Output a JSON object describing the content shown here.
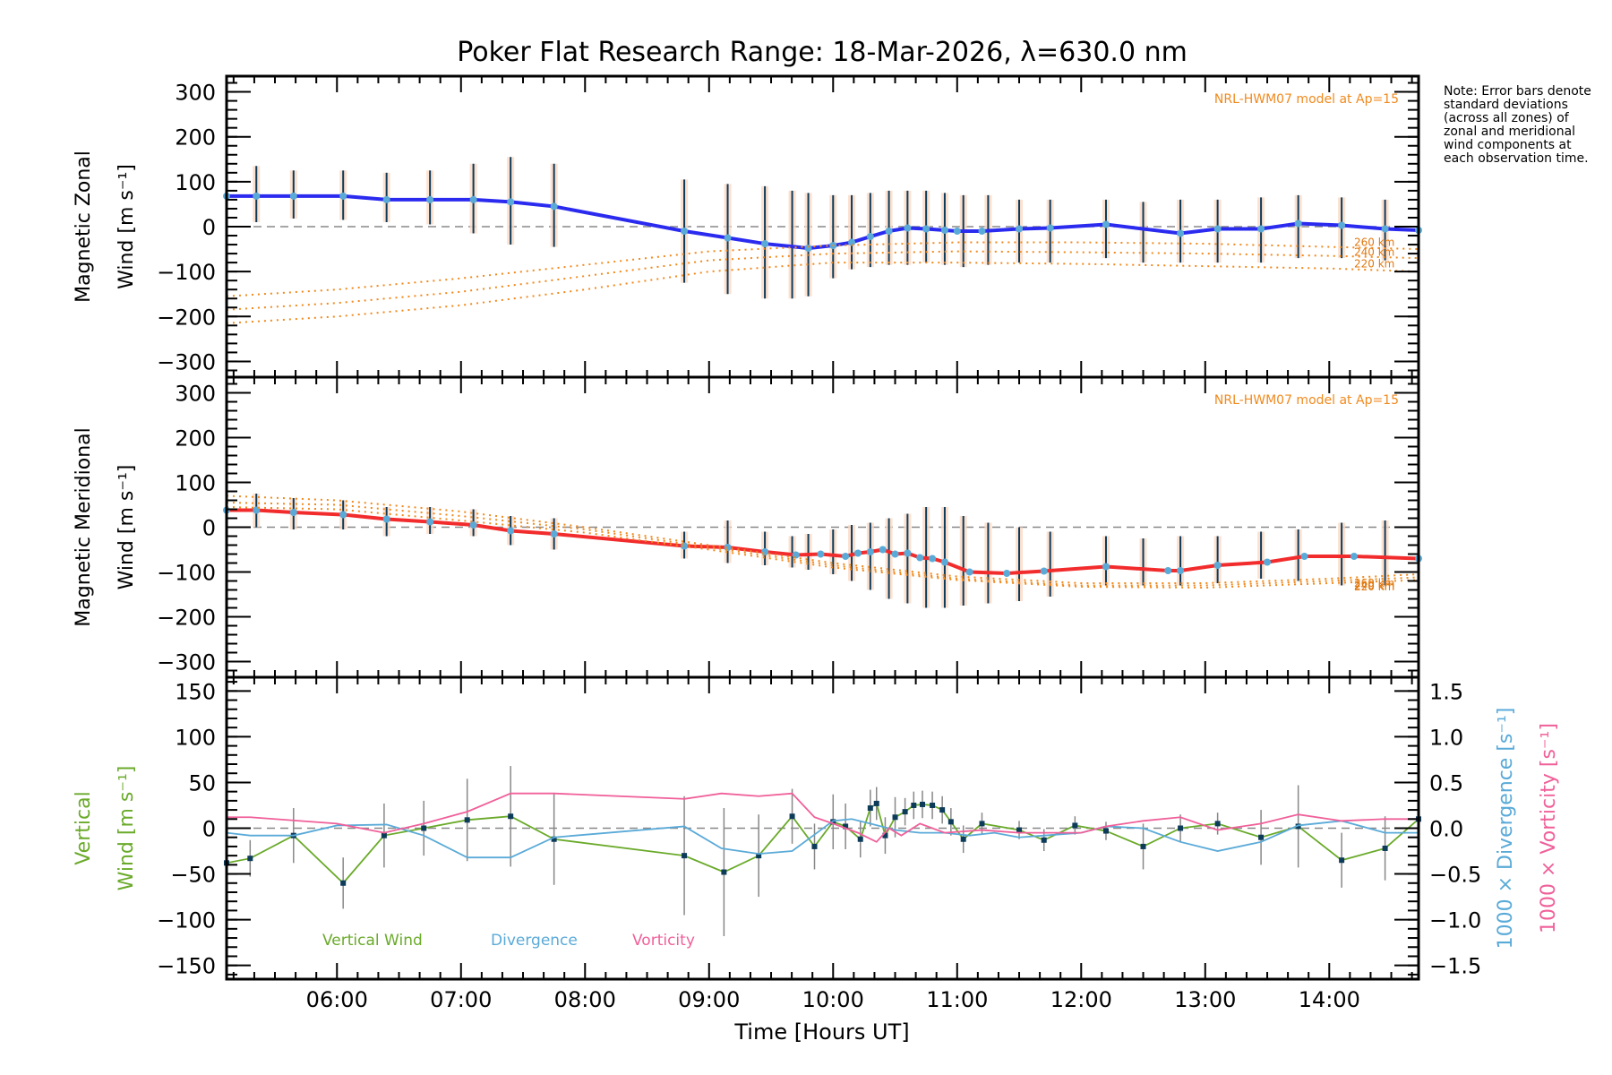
{
  "chart_data": {
    "type": "line",
    "title": "Poker Flat Research Range: 18-Mar-2026, λ=630.0 nm",
    "xlabel": "Time [Hours UT]",
    "x_range_hours": [
      5.11,
      14.72
    ],
    "x_ticks": [
      {
        "value": 6,
        "label": "06:00"
      },
      {
        "value": 7,
        "label": "07:00"
      },
      {
        "value": 8,
        "label": "08:00"
      },
      {
        "value": 9,
        "label": "09:00"
      },
      {
        "value": 10,
        "label": "10:00"
      },
      {
        "value": 11,
        "label": "11:00"
      },
      {
        "value": 12,
        "label": "12:00"
      },
      {
        "value": 13,
        "label": "13:00"
      },
      {
        "value": 14,
        "label": "14:00"
      }
    ],
    "note": "Note: Error bars denote standard deviations (across all zones) of zonal and meridional wind components at each observation time.",
    "panels": [
      {
        "name": "zonal",
        "ylabel_line1": "Magnetic Zonal",
        "ylabel_line2": "Wind [m s⁻¹]",
        "ylim": [
          -335,
          335
        ],
        "yticks": [
          300,
          200,
          100,
          0,
          -100,
          -200,
          -300
        ],
        "model_label": "NRL-HWM07 model at Ap=15",
        "series": [
          {
            "name": "Zonal wind",
            "color": "#2b2bf0",
            "x": [
              5.11,
              5.35,
              5.65,
              6.05,
              6.4,
              6.75,
              7.1,
              7.4,
              7.75,
              8.8,
              9.15,
              9.45,
              9.8,
              10.0,
              10.15,
              10.3,
              10.45,
              10.6,
              10.75,
              10.9,
              11.0,
              11.2,
              11.5,
              11.75,
              12.2,
              12.8,
              13.1,
              13.45,
              13.75,
              14.1,
              14.45,
              14.72
            ],
            "y": [
              68,
              68,
              68,
              68,
              60,
              60,
              60,
              55,
              45,
              -10,
              -25,
              -38,
              -48,
              -42,
              -35,
              -22,
              -10,
              -3,
              -5,
              -8,
              -10,
              -10,
              -5,
              -3,
              5,
              -15,
              -5,
              -5,
              7,
              3,
              -5,
              -8
            ]
          },
          {
            "name": "HWM07 260 km",
            "color": "#f08a1e",
            "label": "260 km",
            "x": [
              5.11,
              6.0,
              7.0,
              8.0,
              9.0,
              10.0,
              11.0,
              12.0,
              13.0,
              14.0,
              14.72
            ],
            "y": [
              -155,
              -140,
              -115,
              -85,
              -55,
              -42,
              -35,
              -35,
              -38,
              -45,
              -50
            ]
          },
          {
            "name": "HWM07 240 km",
            "color": "#f08a1e",
            "label": "240 km",
            "x": [
              5.11,
              6.0,
              7.0,
              8.0,
              9.0,
              10.0,
              11.0,
              12.0,
              13.0,
              14.0,
              14.72
            ],
            "y": [
              -185,
              -170,
              -145,
              -110,
              -75,
              -60,
              -55,
              -57,
              -60,
              -65,
              -70
            ]
          },
          {
            "name": "HWM07 220 km",
            "color": "#f08a1e",
            "label": "220 km",
            "x": [
              5.11,
              6.0,
              7.0,
              8.0,
              9.0,
              10.0,
              11.0,
              12.0,
              13.0,
              14.0,
              14.72
            ],
            "y": [
              -215,
              -200,
              -175,
              -140,
              -100,
              -80,
              -80,
              -83,
              -88,
              -93,
              -100
            ]
          }
        ],
        "error_bars": {
          "x": [
            5.35,
            5.65,
            6.05,
            6.4,
            6.75,
            7.1,
            7.4,
            7.75,
            8.8,
            9.15,
            9.45,
            9.67,
            9.8,
            10.0,
            10.15,
            10.3,
            10.45,
            10.6,
            10.75,
            10.9,
            11.05,
            11.25,
            11.5,
            11.75,
            12.2,
            12.5,
            12.8,
            13.1,
            13.45,
            13.75,
            14.1,
            14.45
          ],
          "lo": [
            10,
            18,
            15,
            10,
            5,
            -15,
            -40,
            -45,
            -125,
            -150,
            -160,
            -160,
            -155,
            -115,
            -95,
            -90,
            -85,
            -85,
            -80,
            -85,
            -90,
            -85,
            -80,
            -80,
            -70,
            -80,
            -80,
            -80,
            -80,
            -70,
            -70,
            -75
          ],
          "hi": [
            135,
            125,
            125,
            120,
            125,
            140,
            155,
            140,
            105,
            95,
            90,
            80,
            75,
            70,
            70,
            75,
            80,
            80,
            80,
            75,
            70,
            70,
            60,
            60,
            60,
            55,
            60,
            60,
            65,
            70,
            65,
            60
          ]
        }
      },
      {
        "name": "meridional",
        "ylabel_line1": "Magnetic Meridional",
        "ylabel_line2": "Wind [m s⁻¹]",
        "ylim": [
          -335,
          335
        ],
        "yticks": [
          300,
          200,
          100,
          0,
          -100,
          -200,
          -300
        ],
        "model_label": "NRL-HWM07 model at Ap=15",
        "series": [
          {
            "name": "Meridional wind",
            "color": "#f22c2c",
            "x": [
              5.11,
              5.35,
              5.65,
              6.05,
              6.4,
              6.75,
              7.1,
              7.4,
              7.75,
              8.8,
              9.15,
              9.45,
              9.7,
              9.9,
              10.1,
              10.2,
              10.3,
              10.4,
              10.5,
              10.6,
              10.7,
              10.8,
              10.9,
              11.1,
              11.4,
              11.7,
              12.2,
              12.7,
              12.8,
              13.1,
              13.5,
              13.8,
              14.2,
              14.72
            ],
            "y": [
              38,
              38,
              33,
              28,
              18,
              12,
              5,
              -8,
              -15,
              -42,
              -45,
              -55,
              -62,
              -60,
              -65,
              -58,
              -55,
              -50,
              -60,
              -58,
              -68,
              -70,
              -78,
              -100,
              -103,
              -98,
              -88,
              -97,
              -97,
              -85,
              -78,
              -65,
              -65,
              -70
            ]
          },
          {
            "name": "HWM07 260 km",
            "color": "#f08a1e",
            "label": "260 km",
            "x": [
              5.11,
              6.0,
              7.0,
              8.0,
              9.0,
              10.0,
              11.0,
              12.0,
              13.0,
              14.0,
              14.72
            ],
            "y": [
              70,
              60,
              35,
              0,
              -40,
              -80,
              -110,
              -125,
              -125,
              -115,
              -105
            ]
          },
          {
            "name": "HWM07 240 km",
            "color": "#f08a1e",
            "label": "240 km",
            "x": [
              5.11,
              6.0,
              7.0,
              8.0,
              9.0,
              10.0,
              11.0,
              12.0,
              13.0,
              14.0,
              14.72
            ],
            "y": [
              55,
              50,
              25,
              -5,
              -45,
              -85,
              -115,
              -130,
              -130,
              -120,
              -112
            ]
          },
          {
            "name": "HWM07 220 km",
            "color": "#f08a1e",
            "label": "220 km",
            "x": [
              5.11,
              6.0,
              7.0,
              8.0,
              9.0,
              10.0,
              11.0,
              12.0,
              13.0,
              14.0,
              14.72
            ],
            "y": [
              45,
              40,
              15,
              -12,
              -50,
              -90,
              -118,
              -133,
              -135,
              -125,
              -118
            ]
          }
        ],
        "error_bars": {
          "x": [
            5.35,
            5.65,
            6.05,
            6.4,
            6.75,
            7.1,
            7.4,
            7.75,
            8.8,
            9.15,
            9.45,
            9.67,
            9.8,
            10.0,
            10.15,
            10.3,
            10.45,
            10.6,
            10.75,
            10.9,
            11.05,
            11.25,
            11.5,
            11.75,
            12.2,
            12.5,
            12.8,
            13.1,
            13.45,
            13.75,
            14.1,
            14.45
          ],
          "lo": [
            0,
            -5,
            -5,
            -20,
            -15,
            -20,
            -40,
            -50,
            -70,
            -80,
            -85,
            -90,
            -95,
            -105,
            -120,
            -140,
            -160,
            -170,
            -180,
            -180,
            -175,
            -170,
            -165,
            -155,
            -130,
            -130,
            -130,
            -125,
            -115,
            -120,
            -130,
            -130
          ],
          "hi": [
            75,
            65,
            60,
            45,
            45,
            40,
            25,
            20,
            -10,
            15,
            -10,
            -20,
            -15,
            -5,
            5,
            10,
            20,
            30,
            45,
            45,
            25,
            10,
            0,
            -10,
            -20,
            -25,
            -20,
            -20,
            -10,
            -5,
            10,
            15
          ]
        }
      },
      {
        "name": "vertical",
        "ylabel_line1": "Vertical",
        "ylabel_line2": "Wind [m s⁻¹]",
        "ylim": [
          -165,
          165
        ],
        "yticks": [
          150,
          100,
          50,
          0,
          -50,
          -100,
          -150
        ],
        "y2label_divergence": "1000 × Divergence [s⁻¹]",
        "y2label_vorticity": "1000 × Vorticity [s⁻¹]",
        "y2lim": [
          -1.65,
          1.65
        ],
        "y2ticks": [
          "1.5",
          "1.0",
          "0.5",
          "0.0",
          "−0.5",
          "−1.0",
          "−1.5"
        ],
        "legend": [
          {
            "label": "Vertical Wind",
            "color": "#6aaa2a"
          },
          {
            "label": "Divergence",
            "color": "#5aaad8"
          },
          {
            "label": "Vorticity",
            "color": "#f0609a"
          }
        ],
        "series": [
          {
            "name": "Vertical Wind",
            "color": "#6aaa2a",
            "axis": "left",
            "x": [
              5.11,
              5.3,
              5.65,
              6.05,
              6.38,
              6.7,
              7.05,
              7.4,
              7.75,
              8.8,
              9.12,
              9.4,
              9.67,
              9.85,
              10.0,
              10.1,
              10.22,
              10.3,
              10.35,
              10.42,
              10.5,
              10.58,
              10.65,
              10.72,
              10.8,
              10.88,
              10.95,
              11.05,
              11.2,
              11.5,
              11.7,
              11.95,
              12.2,
              12.5,
              12.8,
              13.1,
              13.45,
              13.75,
              14.1,
              14.45,
              14.72
            ],
            "y": [
              -38,
              -33,
              -8,
              -60,
              -8,
              0,
              9,
              13,
              -12,
              -30,
              -48,
              -30,
              13,
              -20,
              7,
              2,
              -12,
              22,
              27,
              -8,
              12,
              18,
              25,
              26,
              25,
              20,
              7,
              -12,
              5,
              -2,
              -13,
              3,
              -3,
              -20,
              0,
              5,
              -10,
              2,
              -35,
              -22,
              10
            ],
            "err": [
              0,
              20,
              30,
              28,
              35,
              30,
              45,
              55,
              50,
              65,
              70,
              45,
              30,
              25,
              30,
              25,
              20,
              20,
              18,
              20,
              22,
              15,
              15,
              15,
              15,
              15,
              15,
              15,
              12,
              10,
              12,
              10,
              10,
              25,
              15,
              12,
              30,
              45,
              30,
              35,
              0
            ]
          },
          {
            "name": "Divergence",
            "color": "#5aaad8",
            "axis": "right",
            "x": [
              5.11,
              5.3,
              5.65,
              6.0,
              6.4,
              6.7,
              7.05,
              7.4,
              7.75,
              8.8,
              9.1,
              9.4,
              9.67,
              10.0,
              10.15,
              10.3,
              10.5,
              10.7,
              10.9,
              11.1,
              11.3,
              11.5,
              11.7,
              12.0,
              12.2,
              12.5,
              12.8,
              13.1,
              13.45,
              13.75,
              14.1,
              14.45,
              14.72
            ],
            "y": [
              -0.05,
              -0.08,
              -0.08,
              0.03,
              0.04,
              -0.08,
              -0.32,
              -0.32,
              -0.1,
              0.02,
              -0.22,
              -0.28,
              -0.25,
              0.08,
              0.1,
              0.05,
              -0.02,
              -0.05,
              -0.05,
              -0.08,
              -0.05,
              -0.1,
              -0.08,
              -0.05,
              0.02,
              0.0,
              -0.15,
              -0.25,
              -0.15,
              0.03,
              0.08,
              -0.05,
              -0.05
            ]
          },
          {
            "name": "Vorticity",
            "color": "#f0609a",
            "axis": "right",
            "x": [
              5.11,
              5.3,
              6.0,
              6.38,
              6.7,
              7.05,
              7.4,
              7.75,
              8.8,
              9.1,
              9.4,
              9.67,
              9.85,
              10.0,
              10.2,
              10.35,
              10.45,
              10.55,
              10.7,
              10.9,
              11.2,
              11.5,
              11.7,
              12.0,
              12.2,
              12.5,
              12.8,
              13.1,
              13.45,
              13.75,
              14.1,
              14.45,
              14.72
            ],
            "y": [
              0.12,
              0.12,
              0.05,
              -0.05,
              0.05,
              0.18,
              0.38,
              0.38,
              0.32,
              0.38,
              0.35,
              0.38,
              0.12,
              0.05,
              -0.05,
              -0.15,
              0.0,
              -0.08,
              0.05,
              -0.05,
              -0.02,
              -0.05,
              -0.05,
              -0.05,
              0.02,
              0.08,
              0.12,
              -0.02,
              0.05,
              0.15,
              0.08,
              0.1,
              0.1
            ]
          }
        ]
      }
    ]
  }
}
